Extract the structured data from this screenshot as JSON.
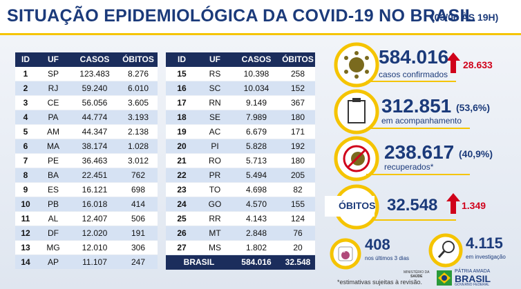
{
  "header": {
    "title": "SITUAÇÃO EPIDEMIOLÓGICA DA COVID-19 NO BRASIL",
    "date": "(03/06 ÀS 19H)"
  },
  "table": {
    "columns": [
      "ID",
      "UF",
      "CASOS",
      "ÓBITOS"
    ],
    "rows": [
      [
        "1",
        "SP",
        "123.483",
        "8.276"
      ],
      [
        "2",
        "RJ",
        "59.240",
        "6.010"
      ],
      [
        "3",
        "CE",
        "56.056",
        "3.605"
      ],
      [
        "4",
        "PA",
        "44.774",
        "3.193"
      ],
      [
        "5",
        "AM",
        "44.347",
        "2.138"
      ],
      [
        "6",
        "MA",
        "38.174",
        "1.028"
      ],
      [
        "7",
        "PE",
        "36.463",
        "3.012"
      ],
      [
        "8",
        "BA",
        "22.451",
        "762"
      ],
      [
        "9",
        "ES",
        "16.121",
        "698"
      ],
      [
        "10",
        "PB",
        "16.018",
        "414"
      ],
      [
        "11",
        "AL",
        "12.407",
        "506"
      ],
      [
        "12",
        "DF",
        "12.020",
        "191"
      ],
      [
        "13",
        "MG",
        "12.010",
        "306"
      ],
      [
        "14",
        "AP",
        "11.107",
        "247"
      ],
      [
        "15",
        "RS",
        "10.398",
        "258"
      ],
      [
        "16",
        "SC",
        "10.034",
        "152"
      ],
      [
        "17",
        "RN",
        "9.149",
        "367"
      ],
      [
        "18",
        "SE",
        "7.989",
        "180"
      ],
      [
        "19",
        "AC",
        "6.679",
        "171"
      ],
      [
        "20",
        "PI",
        "5.828",
        "192"
      ],
      [
        "21",
        "RO",
        "5.713",
        "180"
      ],
      [
        "22",
        "PR",
        "5.494",
        "205"
      ],
      [
        "23",
        "TO",
        "4.698",
        "82"
      ],
      [
        "24",
        "GO",
        "4.570",
        "155"
      ],
      [
        "25",
        "RR",
        "4.143",
        "124"
      ],
      [
        "26",
        "MT",
        "2.848",
        "76"
      ],
      [
        "27",
        "MS",
        "1.802",
        "20"
      ]
    ],
    "total": [
      "BRASIL",
      "584.016",
      "32.548"
    ]
  },
  "stats": {
    "confirmed": {
      "value": "584.016",
      "label": "casos confirmados",
      "new": "28.633"
    },
    "monitoring": {
      "value": "312.851",
      "pct": "(53,6%)",
      "label": "em acompanhamento"
    },
    "recovered": {
      "value": "238.617",
      "pct": "(40,9%)",
      "label": "recuperados*"
    },
    "deaths": {
      "tag": "ÓBITOS",
      "value": "32.548",
      "new": "1.349"
    },
    "recent": {
      "icon": "3",
      "value": "408",
      "label": "nos últimos 3 dias"
    },
    "investigation": {
      "value": "4.115",
      "label": "em investigação"
    }
  },
  "footer": {
    "note": "*estimativas sujeitas à revisão.",
    "ministry": [
      "MINISTÉRIO DA",
      "SAÚDE"
    ],
    "brand": [
      "PÁTRIA AMADA",
      "BRASIL",
      "GOVERNO FEDERAL"
    ]
  }
}
